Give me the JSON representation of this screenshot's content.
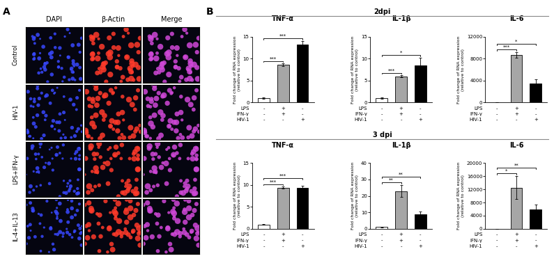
{
  "panel_labels": [
    "A",
    "B"
  ],
  "image_panel": {
    "columns": [
      "DAPI",
      "β-Actin",
      "Merge"
    ],
    "rows": [
      "Control",
      "HIV-1",
      "LPS+IFN-γ",
      "IL-4+IL-13"
    ]
  },
  "row_headers": [
    "2dpi",
    "3 dpi"
  ],
  "chart_data": [
    {
      "type": "bar",
      "title": "TNF-α",
      "ylabel": "Fold change of RNA expression\n(relative to control)",
      "categories": [
        null,
        null,
        null
      ],
      "values": [
        1,
        8.6,
        13.2
      ],
      "errors": [
        0.1,
        0.3,
        0.8
      ],
      "colors": [
        "#ffffff",
        "#a6a6a6",
        "#000000"
      ],
      "ylim": [
        0,
        15
      ],
      "yticks": [
        0,
        5,
        10,
        15
      ],
      "treatments": [
        {
          "name": "LPS",
          "marks": [
            "-",
            "+",
            "-"
          ]
        },
        {
          "name": "IFN-γ",
          "marks": [
            "-",
            "+",
            "-"
          ]
        },
        {
          "name": "HIV-1",
          "marks": [
            "-",
            "-",
            "+"
          ]
        }
      ],
      "significance": [
        {
          "from": 0,
          "to": 1,
          "label": "***"
        },
        {
          "from": 0,
          "to": 2,
          "label": "***"
        }
      ]
    },
    {
      "type": "bar",
      "title": "IL-1β",
      "ylabel": "Fold change of RNA expression\n(relative to control)",
      "categories": [
        null,
        null,
        null
      ],
      "values": [
        1,
        6.0,
        8.5
      ],
      "errors": [
        0.2,
        0.2,
        1.7
      ],
      "colors": [
        "#ffffff",
        "#a6a6a6",
        "#000000"
      ],
      "ylim": [
        0,
        15
      ],
      "yticks": [
        0,
        5,
        10,
        15
      ],
      "treatments": [
        {
          "name": "LPS",
          "marks": [
            "-",
            "+",
            "-"
          ]
        },
        {
          "name": "IFN-γ",
          "marks": [
            "-",
            "+",
            "-"
          ]
        },
        {
          "name": "HIV-1",
          "marks": [
            "-",
            "-",
            "+"
          ]
        }
      ],
      "significance": [
        {
          "from": 0,
          "to": 1,
          "label": "***"
        },
        {
          "from": 0,
          "to": 2,
          "label": "*"
        }
      ]
    },
    {
      "type": "bar",
      "title": "IL-6",
      "ylabel": "Fold change of RNA expression\n(relative to control)",
      "categories": [
        null,
        null,
        null
      ],
      "values": [
        1,
        8700,
        3500
      ],
      "errors": [
        0,
        500,
        800
      ],
      "colors": [
        "#ffffff",
        "#a6a6a6",
        "#000000"
      ],
      "ylim": [
        0,
        12000
      ],
      "yticks": [
        0,
        4000,
        8000,
        12000
      ],
      "treatments": [
        {
          "name": "LPS",
          "marks": [
            "-",
            "+",
            "-"
          ]
        },
        {
          "name": "IFN-γ",
          "marks": [
            "-",
            "+",
            "-"
          ]
        },
        {
          "name": "HIV-1",
          "marks": [
            "-",
            "-",
            "+"
          ]
        }
      ],
      "significance": [
        {
          "from": 0,
          "to": 1,
          "label": "***"
        },
        {
          "from": 0,
          "to": 2,
          "label": "*"
        }
      ]
    },
    {
      "type": "bar",
      "title": "TNF-α",
      "ylabel": "Fold change of RNA expression\n(relative to control)",
      "categories": [
        null,
        null,
        null
      ],
      "values": [
        1,
        9.4,
        9.3
      ],
      "errors": [
        0.1,
        0.2,
        0.5
      ],
      "colors": [
        "#ffffff",
        "#a6a6a6",
        "#000000"
      ],
      "ylim": [
        0,
        15
      ],
      "yticks": [
        0,
        5,
        10,
        15
      ],
      "treatments": [
        {
          "name": "LPS",
          "marks": [
            "-",
            "+",
            "-"
          ]
        },
        {
          "name": "IFN-γ",
          "marks": [
            "-",
            "+",
            "-"
          ]
        },
        {
          "name": "HIV-1",
          "marks": [
            "-",
            "-",
            "+"
          ]
        }
      ],
      "significance": [
        {
          "from": 0,
          "to": 1,
          "label": "***"
        },
        {
          "from": 0,
          "to": 2,
          "label": "***"
        }
      ]
    },
    {
      "type": "bar",
      "title": "IL-1β",
      "ylabel": "Fold change of RNA expression\n(relative to control)",
      "categories": [
        null,
        null,
        null
      ],
      "values": [
        1,
        23,
        9
      ],
      "errors": [
        0.2,
        3.5,
        1.5
      ],
      "colors": [
        "#ffffff",
        "#a6a6a6",
        "#000000"
      ],
      "ylim": [
        0,
        40
      ],
      "yticks": [
        0,
        10,
        20,
        30,
        40
      ],
      "treatments": [
        {
          "name": "LPS",
          "marks": [
            "-",
            "+",
            "-"
          ]
        },
        {
          "name": "IFN-γ",
          "marks": [
            "-",
            "+",
            "-"
          ]
        },
        {
          "name": "HIV-1",
          "marks": [
            "-",
            "-",
            "+"
          ]
        }
      ],
      "significance": [
        {
          "from": 0,
          "to": 1,
          "label": "**"
        },
        {
          "from": 0,
          "to": 2,
          "label": "**"
        }
      ]
    },
    {
      "type": "bar",
      "title": "IL-6",
      "ylabel": "Fold change of RNA expression\n(relative to control)",
      "categories": [
        null,
        null,
        null
      ],
      "values": [
        1,
        12500,
        6000
      ],
      "errors": [
        0,
        3500,
        1300
      ],
      "colors": [
        "#ffffff",
        "#a6a6a6",
        "#000000"
      ],
      "ylim": [
        0,
        20000
      ],
      "yticks": [
        0,
        4000,
        8000,
        12000,
        16000,
        20000
      ],
      "treatments": [
        {
          "name": "LPS",
          "marks": [
            "-",
            "+",
            "-"
          ]
        },
        {
          "name": "IFN-γ",
          "marks": [
            "-",
            "+",
            "-"
          ]
        },
        {
          "name": "HIV-1",
          "marks": [
            "-",
            "-",
            "+"
          ]
        }
      ],
      "significance": [
        {
          "from": 0,
          "to": 1,
          "label": "*"
        },
        {
          "from": 0,
          "to": 2,
          "label": "**"
        }
      ]
    }
  ]
}
